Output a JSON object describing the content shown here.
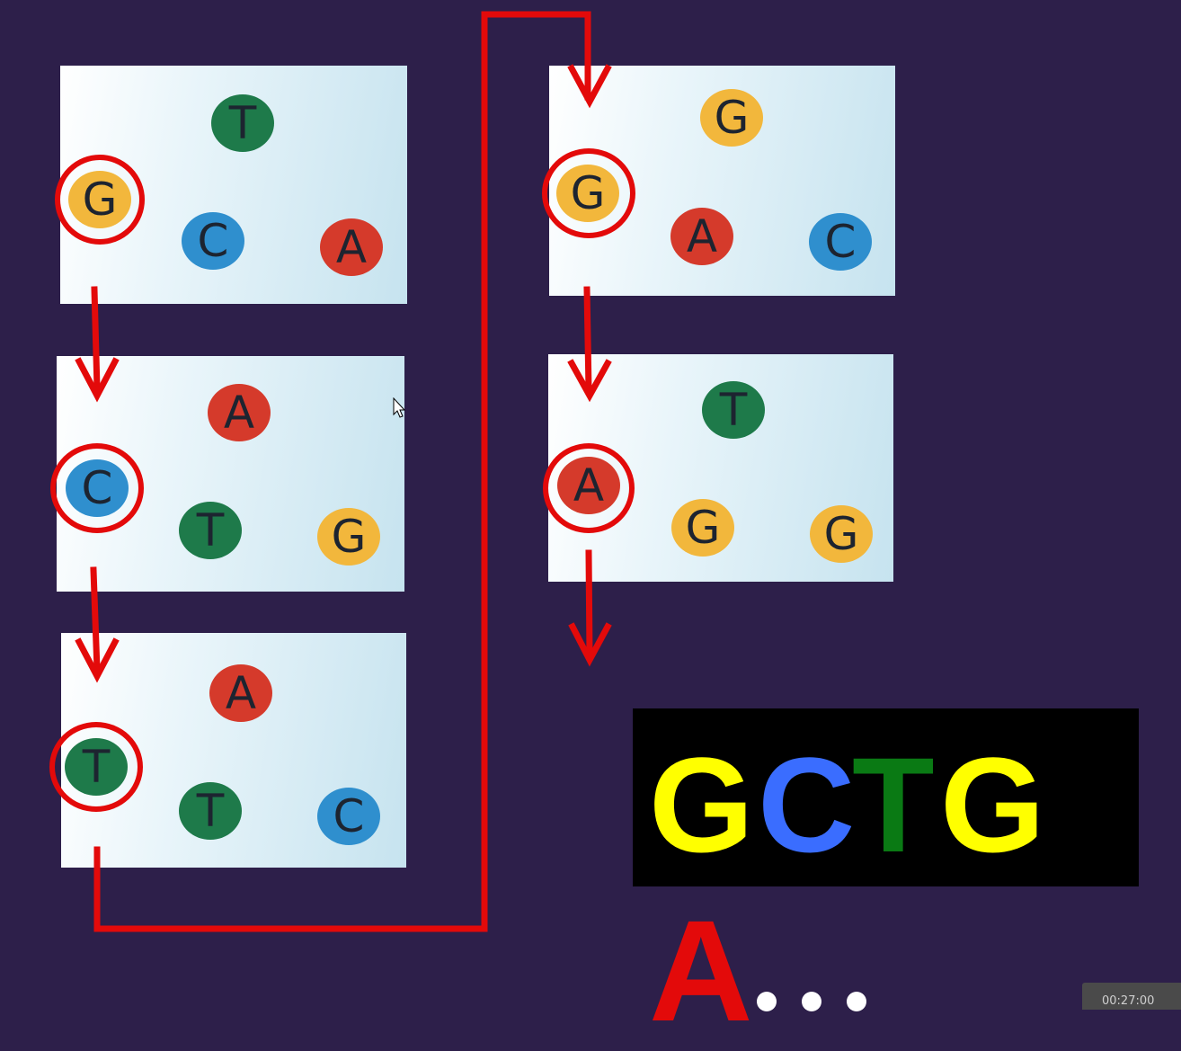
{
  "panels": [
    {
      "id": "round-1",
      "bases": [
        "G",
        "T",
        "C",
        "A"
      ],
      "selected": "G"
    },
    {
      "id": "round-2",
      "bases": [
        "C",
        "A",
        "T",
        "G"
      ],
      "selected": "C"
    },
    {
      "id": "round-3",
      "bases": [
        "T",
        "A",
        "T",
        "C"
      ],
      "selected": "T"
    },
    {
      "id": "round-4",
      "bases": [
        "G",
        "G",
        "A",
        "C"
      ],
      "selected": "G"
    },
    {
      "id": "round-5",
      "bases": [
        "A",
        "T",
        "G",
        "G"
      ],
      "selected": "A"
    }
  ],
  "sequence": [
    "G",
    "C",
    "T",
    "G"
  ],
  "next_base": "A",
  "ellipsis": "...",
  "timer": "00:27:00",
  "colors": {
    "background": "#2d1f4a",
    "arrow": "#e30a0a",
    "base_G": "#f2b73c",
    "base_T": "#1e7a4a",
    "base_C": "#2f8fce",
    "base_A": "#d53a2b",
    "seq_G": "#ffff00",
    "seq_C": "#3a6dff",
    "seq_T": "#0a7a14"
  }
}
